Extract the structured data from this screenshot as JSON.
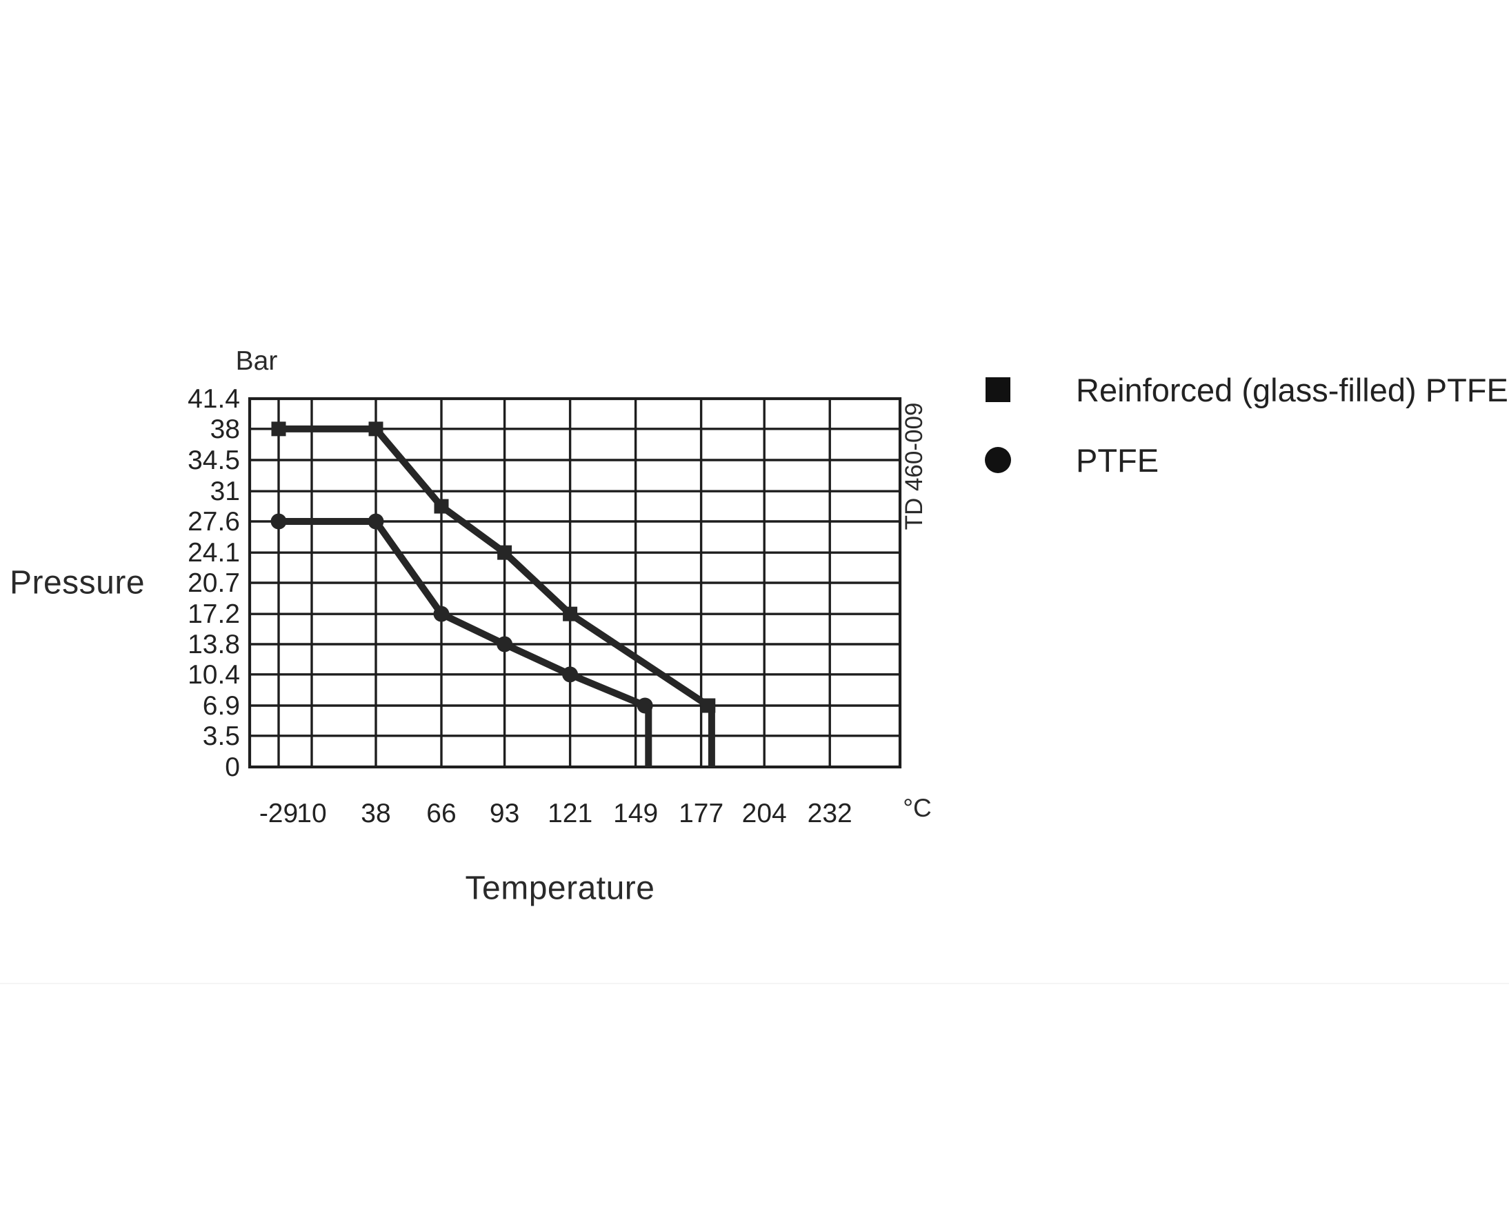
{
  "page": {
    "background": "#ffffff"
  },
  "chart_data": {
    "type": "line",
    "title": "",
    "ink_color": "#1e1e1e",
    "grid": true,
    "y_axis": {
      "title": "Pressure",
      "unit_label": "Bar",
      "tick_labels": [
        "41.4",
        "38",
        "34.5",
        "31",
        "27.6",
        "24.1",
        "20.7",
        "17.2",
        "13.8",
        "10.4",
        "6.9",
        "3.5",
        "0"
      ],
      "tick_values": [
        41.4,
        38,
        34.5,
        31,
        27.6,
        24.1,
        20.7,
        17.2,
        13.8,
        10.4,
        6.9,
        3.5,
        0
      ],
      "range": [
        0,
        41.4
      ]
    },
    "x_axis": {
      "title": "Temperature",
      "unit_label": "°C",
      "tick_labels": [
        "-29",
        "10",
        "38",
        "66",
        "93",
        "121",
        "149",
        "177",
        "204",
        "232"
      ],
      "tick_values": [
        -29,
        10,
        38,
        66,
        93,
        121,
        149,
        177,
        204,
        232
      ],
      "note": "first two intervals drawn compressed; grid extends one unlabeled step past 232"
    },
    "series": [
      {
        "name": "Reinforced (glass-filled) PTFE",
        "marker": "square",
        "color": "#262626",
        "points": [
          [
            -29,
            38
          ],
          [
            38,
            38
          ],
          [
            66,
            29.3
          ],
          [
            93,
            24.1
          ],
          [
            121,
            17.2
          ],
          [
            180,
            6.9
          ],
          [
            181.5,
            6.9
          ],
          [
            181.5,
            0
          ]
        ],
        "marker_count": 6
      },
      {
        "name": "PTFE",
        "marker": "circle",
        "color": "#262626",
        "points": [
          [
            -29,
            27.6
          ],
          [
            38,
            27.6
          ],
          [
            66,
            17.2
          ],
          [
            93,
            13.8
          ],
          [
            121,
            10.4
          ],
          [
            153,
            6.9
          ],
          [
            154.5,
            6.9
          ],
          [
            154.5,
            0
          ]
        ],
        "marker_count": 6
      }
    ],
    "legend": {
      "position": "top-right",
      "entries": [
        {
          "marker": "square",
          "label": "Reinforced (glass-filled) PTFE"
        },
        {
          "marker": "circle",
          "label": "PTFE"
        }
      ]
    },
    "watermark": "TD 460-009"
  }
}
